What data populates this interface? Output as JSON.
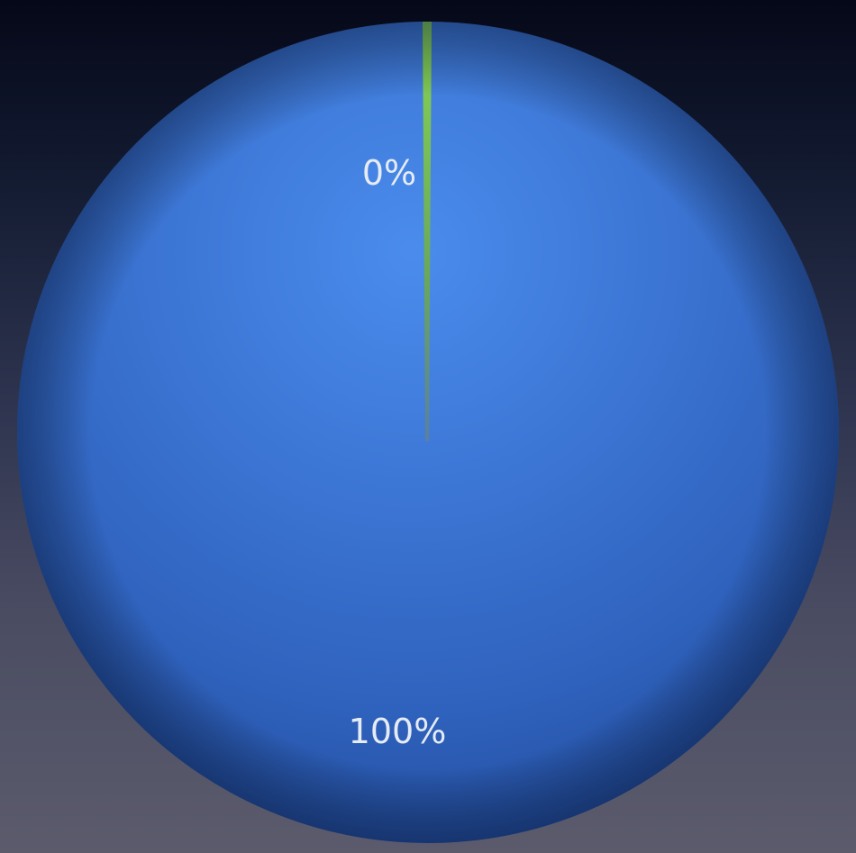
{
  "chart_data": {
    "type": "pie",
    "categories": [
      "",
      ""
    ],
    "values": [
      0,
      100
    ],
    "labels": [
      "0%",
      "100%"
    ],
    "colors": [
      "#7cc84a",
      "#3a78d6"
    ],
    "title": "",
    "legend": "none"
  }
}
